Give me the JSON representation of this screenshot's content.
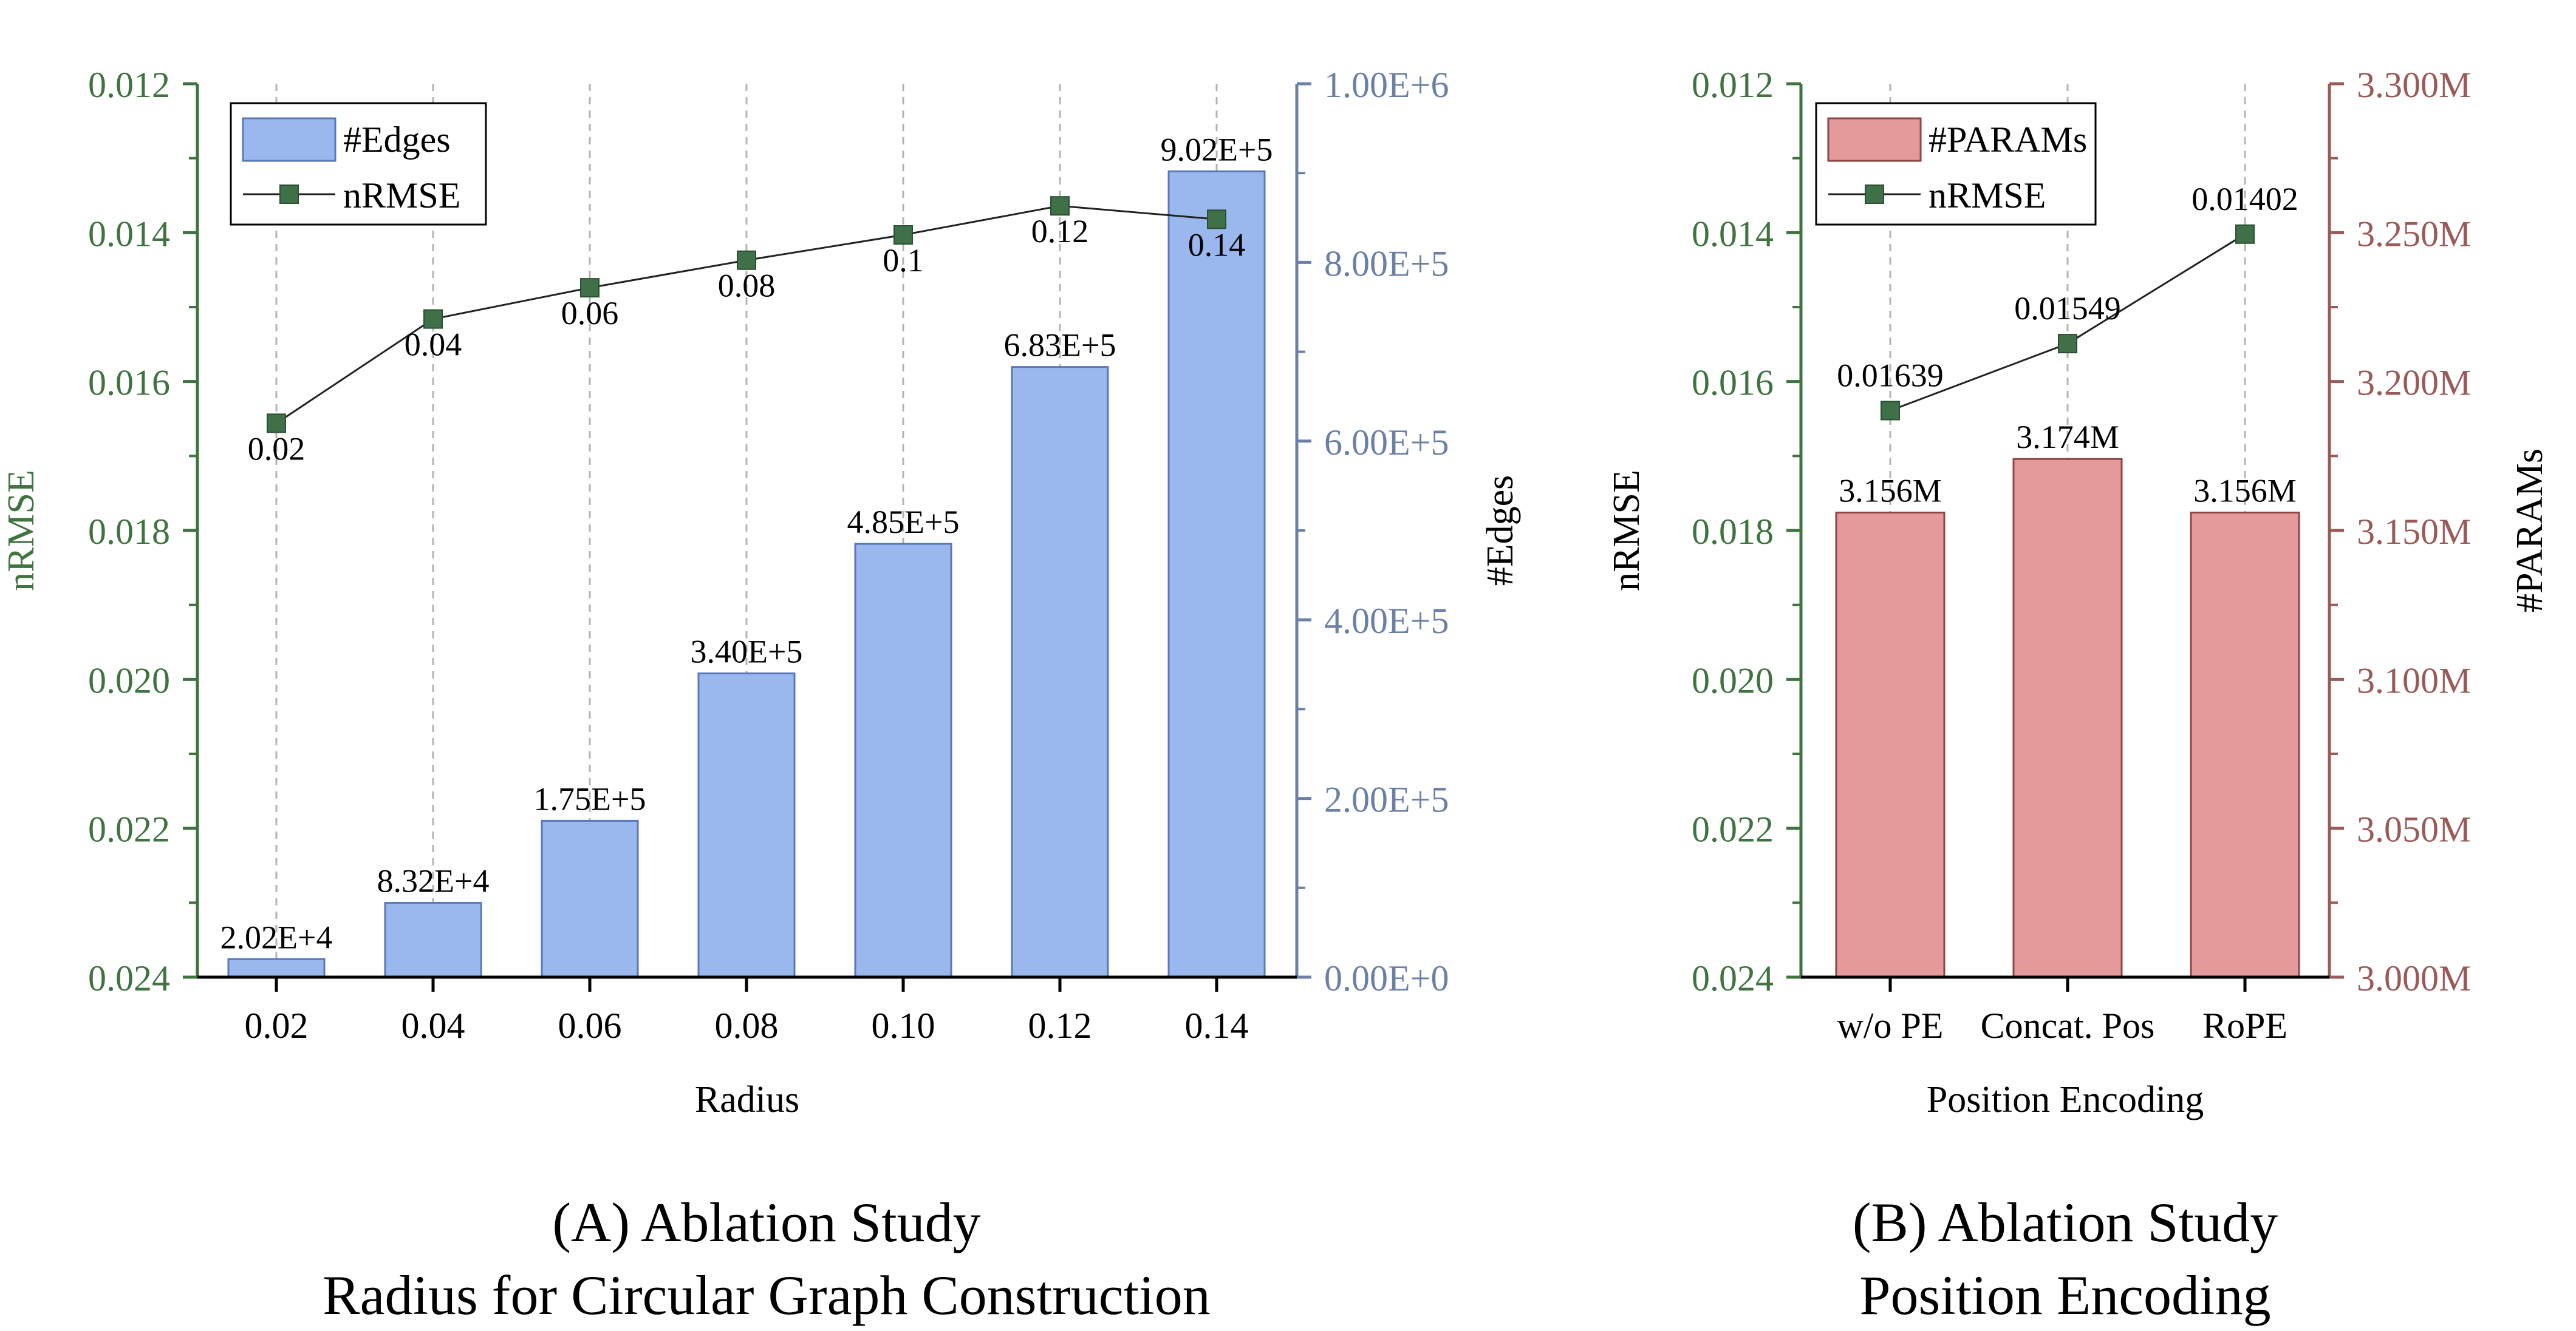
{
  "colors": {
    "nrmse_axis": "#3f7340",
    "edges_axis": "#6b80a6",
    "params_axis": "#9a5a57",
    "edges_bar_fill": "#9ab8ee",
    "edges_bar_stroke": "#5a77b8",
    "params_bar_fill": "#e4999a",
    "params_bar_stroke": "#8f4444",
    "marker": "#3f7048",
    "line": "#222222",
    "text": "#000000",
    "grid": "#b3b3b3"
  },
  "chart_data": [
    {
      "type": "bar",
      "caption": [
        "(A) Ablation Study",
        "Radius for Circular Graph Construction"
      ],
      "xlabel": "Radius",
      "ylabel_left": "nRMSE",
      "ylabel_right": "#Edges",
      "categories": [
        "0.02",
        "0.04",
        "0.06",
        "0.08",
        "0.10",
        "0.12",
        "0.14"
      ],
      "left_axis": {
        "range_top": 0.012,
        "range_bottom": 0.024,
        "inverted": true,
        "ticks": [
          "0.012",
          "0.014",
          "0.016",
          "0.018",
          "0.020",
          "0.022",
          "0.024"
        ],
        "tick_values": [
          0.012,
          0.014,
          0.016,
          0.018,
          0.02,
          0.022,
          0.024
        ]
      },
      "right_axis": {
        "range": [
          0,
          1000000
        ],
        "ticks": [
          "0.00E+0",
          "2.00E+5",
          "4.00E+5",
          "6.00E+5",
          "8.00E+5",
          "1.00E+6"
        ],
        "tick_values": [
          0,
          200000,
          400000,
          600000,
          800000,
          1000000
        ]
      },
      "bar_series": {
        "name": "#Edges",
        "axis": "right",
        "values": [
          20200,
          83200,
          175000,
          340000,
          485000,
          683000,
          902000
        ],
        "labels": [
          "2.02E+4",
          "8.32E+4",
          "1.75E+5",
          "3.40E+5",
          "4.85E+5",
          "6.83E+5",
          "9.02E+5"
        ]
      },
      "line_series": {
        "name": "nRMSE",
        "axis": "left",
        "values": [
          0.01656,
          0.01516,
          0.01474,
          0.01437,
          0.01403,
          0.01364,
          0.01382
        ],
        "labels": [
          "0.02",
          "0.04",
          "0.06",
          "0.08",
          "0.1",
          "0.12",
          "0.14"
        ],
        "label_positions": [
          "below",
          "below",
          "below",
          "below",
          "below",
          "below",
          "below"
        ]
      },
      "grid": "vertical-dashed",
      "legend": "top-left"
    },
    {
      "type": "bar",
      "caption": [
        "(B) Ablation Study",
        "Position Encoding"
      ],
      "xlabel": "Position Encoding",
      "ylabel_left": "nRMSE",
      "ylabel_right": "#PARAMs",
      "categories": [
        "w/o PE",
        "Concat. Pos",
        "RoPE"
      ],
      "left_axis": {
        "range_top": 0.012,
        "range_bottom": 0.024,
        "inverted": true,
        "ticks": [
          "0.012",
          "0.014",
          "0.016",
          "0.018",
          "0.020",
          "0.022",
          "0.024"
        ],
        "tick_values": [
          0.012,
          0.014,
          0.016,
          0.018,
          0.02,
          0.022,
          0.024
        ]
      },
      "right_axis": {
        "range": [
          3.0,
          3.3
        ],
        "ticks": [
          "3.000M",
          "3.050M",
          "3.100M",
          "3.150M",
          "3.200M",
          "3.250M",
          "3.300M"
        ],
        "tick_values": [
          3.0,
          3.05,
          3.1,
          3.15,
          3.2,
          3.25,
          3.3
        ]
      },
      "bar_series": {
        "name": "#PARAMs",
        "axis": "right",
        "values": [
          3.156,
          3.174,
          3.156
        ],
        "labels": [
          "3.156M",
          "3.174M",
          "3.156M"
        ]
      },
      "line_series": {
        "name": "nRMSE",
        "axis": "left",
        "values": [
          0.01639,
          0.01549,
          0.01402
        ],
        "labels": [
          "0.01639",
          "0.01549",
          "0.01402"
        ],
        "label_positions": [
          "above",
          "above",
          "above"
        ]
      },
      "grid": "vertical-dashed",
      "legend": "top-left"
    }
  ]
}
